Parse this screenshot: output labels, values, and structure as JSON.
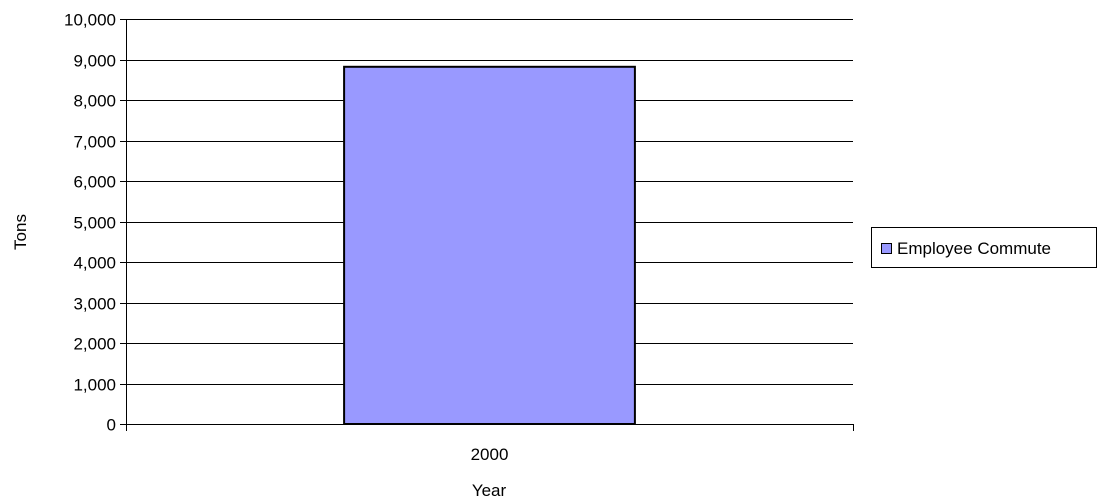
{
  "chart_data": {
    "type": "bar",
    "title": "",
    "xlabel": "Year",
    "ylabel": "Tons",
    "categories": [
      "2000"
    ],
    "series": [
      {
        "name": "Employee Commute",
        "values": [
          8820
        ],
        "color": "#9999ff"
      }
    ],
    "ylim": [
      0,
      10000
    ],
    "yticks": [
      0,
      1000,
      2000,
      3000,
      4000,
      5000,
      6000,
      7000,
      8000,
      9000,
      10000
    ],
    "ytick_labels": [
      "0",
      "1,000",
      "2,000",
      "3,000",
      "4,000",
      "5,000",
      "6,000",
      "7,000",
      "8,000",
      "9,000",
      "10,000"
    ],
    "grid": "horizontal",
    "legend_position": "right"
  }
}
